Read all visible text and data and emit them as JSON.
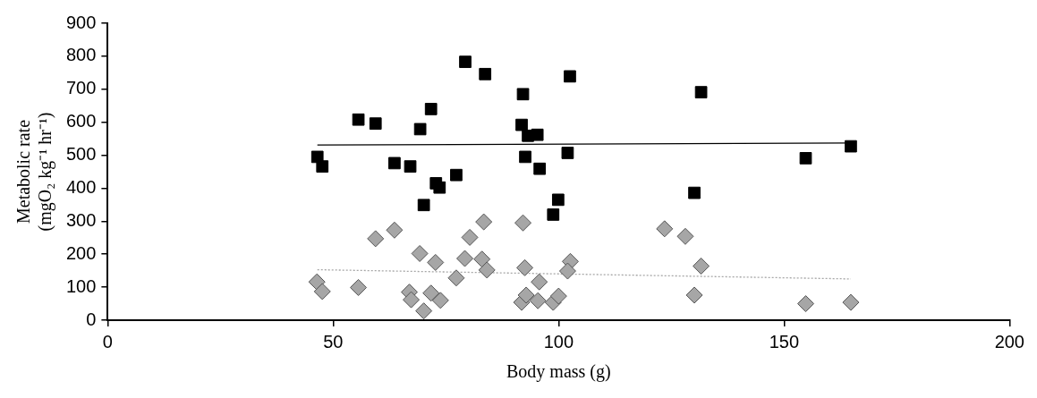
{
  "chart_data": {
    "type": "scatter",
    "xlabel": "Body mass (g)",
    "ylabel": "Metabolic rate\n(mgO₂ kg⁻¹ hr⁻¹)",
    "xlim": [
      0,
      200
    ],
    "xticks": [
      0,
      50,
      100,
      150,
      200
    ],
    "ylim": [
      0,
      900
    ],
    "yticks": [
      0,
      100,
      200,
      300,
      400,
      500,
      600,
      700,
      800,
      900
    ],
    "grid": false,
    "legend": false,
    "series": [
      {
        "marker": "square",
        "color": "#000000",
        "x": [
          46.5,
          47.6,
          55.6,
          59.4,
          63.6,
          67.1,
          69.3,
          70.1,
          71.7,
          72.8,
          73.6,
          77.3,
          79.3,
          83.7,
          92.1,
          91.8,
          93.2,
          95.3,
          92.6,
          95.8,
          99.9,
          98.8,
          102.5,
          102.0,
          131.6,
          130.1,
          154.8,
          164.8
        ],
        "values": [
          495,
          466,
          608,
          596,
          476,
          466,
          579,
          349,
          640,
          415,
          402,
          440,
          783,
          746,
          685,
          592,
          559,
          562,
          495,
          459,
          365,
          320,
          739,
          507,
          691,
          386,
          491,
          527
        ]
      },
      {
        "marker": "diamond",
        "color": "#a6a6a6",
        "x": [
          46.4,
          47.6,
          55.6,
          59.4,
          63.6,
          69.2,
          72.7,
          66.9,
          67.3,
          70.1,
          71.7,
          73.8,
          77.3,
          79.2,
          80.3,
          83.4,
          83.0,
          84.1,
          92.1,
          92.5,
          91.8,
          92.8,
          95.7,
          95.4,
          98.8,
          100.0,
          102.6,
          102.0,
          123.5,
          128.1,
          131.6,
          130.1,
          154.8,
          164.8
        ],
        "values": [
          116,
          87,
          99,
          247,
          273,
          202,
          175,
          85,
          62,
          28,
          82,
          60,
          128,
          187,
          251,
          298,
          185,
          152,
          295,
          159,
          54,
          76,
          116,
          59,
          54,
          73,
          178,
          149,
          277,
          254,
          164,
          76,
          50,
          54
        ]
      },
      {
        "type": "line",
        "marker": "none",
        "line_style": "solid",
        "color": "#000000",
        "x": [
          46.5,
          164.8
        ],
        "values": [
          531,
          537
        ]
      },
      {
        "type": "line",
        "marker": "none",
        "line_style": "dotted",
        "color": "#a6a6a6",
        "x": [
          46.5,
          164.8
        ],
        "values": [
          153,
          125
        ]
      }
    ]
  }
}
